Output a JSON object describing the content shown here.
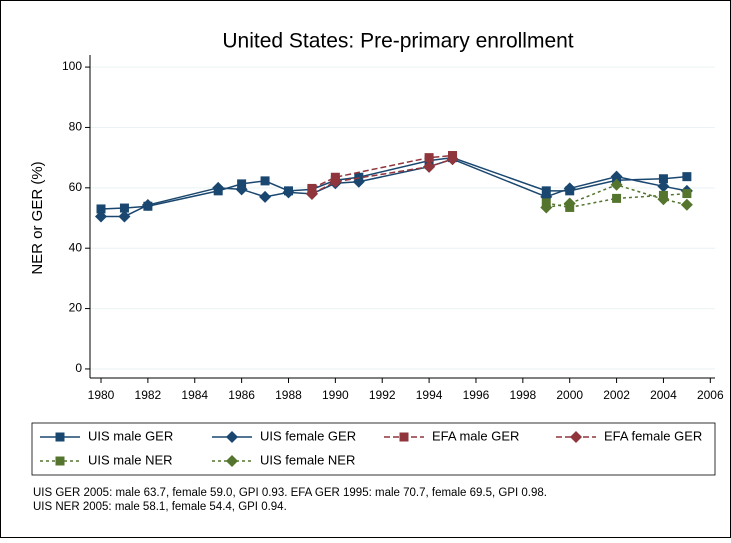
{
  "chart_data": {
    "type": "line",
    "title": "United States: Pre-primary enrollment",
    "y_label": "NER or GER (%)",
    "xlim": [
      1979.53,
      2006.2
    ],
    "xticks": [
      1980,
      1982,
      1984,
      1986,
      1988,
      1990,
      1992,
      1994,
      1996,
      1998,
      2000,
      2002,
      2004,
      2006
    ],
    "ylim": [
      -3,
      104
    ],
    "yticks": [
      0,
      20,
      40,
      60,
      80,
      100
    ],
    "grid": true,
    "series": [
      {
        "name": "UIS male GER",
        "color": "#1a476f",
        "marker": "square",
        "dash": "solid",
        "x": [
          1980,
          1981,
          1982,
          1985,
          1986,
          1987,
          1988,
          1989,
          1990,
          1991,
          1994,
          1995,
          1999,
          2000,
          2002,
          2004,
          2005
        ],
        "values": [
          53,
          53.3,
          53.9,
          59,
          61.3,
          62.3,
          59,
          59.5,
          62.5,
          63.5,
          69,
          70,
          59,
          59,
          62.5,
          63,
          63.7
        ]
      },
      {
        "name": "UIS female GER",
        "color": "#1a476f",
        "marker": "diamond",
        "dash": "solid",
        "x": [
          1980,
          1981,
          1982,
          1985,
          1986,
          1987,
          1988,
          1989,
          1990,
          1991,
          1994,
          1995,
          1999,
          2000,
          2002,
          2004,
          2005
        ],
        "values": [
          50.5,
          50.5,
          54.3,
          60,
          59.5,
          57,
          58.5,
          58,
          61.5,
          62,
          67,
          69.5,
          57,
          59.8,
          63.7,
          60.5,
          59.0
        ]
      },
      {
        "name": "EFA male GER",
        "color": "#90353b",
        "marker": "square",
        "dash": "dash",
        "x": [
          1989,
          1990,
          1994,
          1995
        ],
        "values": [
          59.8,
          63.5,
          70,
          70.7
        ]
      },
      {
        "name": "EFA female GER",
        "color": "#90353b",
        "marker": "diamond",
        "dash": "dash",
        "x": [
          1989,
          1990,
          1994,
          1995
        ],
        "values": [
          58,
          62,
          67,
          69.5
        ]
      },
      {
        "name": "UIS male NER",
        "color": "#55752f",
        "marker": "square",
        "dash": "dot",
        "x": [
          1999,
          2000,
          2002,
          2004,
          2005
        ],
        "values": [
          55,
          53.5,
          56.5,
          57.5,
          58.1
        ]
      },
      {
        "name": "UIS female NER",
        "color": "#55752f",
        "marker": "diamond",
        "dash": "dot",
        "x": [
          1999,
          2000,
          2002,
          2004,
          2005
        ],
        "values": [
          53.5,
          54.8,
          61,
          56.2,
          54.4
        ]
      }
    ],
    "notes": [
      "UIS GER 2005: male 63.7, female 59.0, GPI 0.93. EFA GER 1995: male 70.7, female 69.5, GPI 0.98.",
      "UIS NER 2005: male 58.1, female 54.4, GPI 0.94."
    ]
  }
}
